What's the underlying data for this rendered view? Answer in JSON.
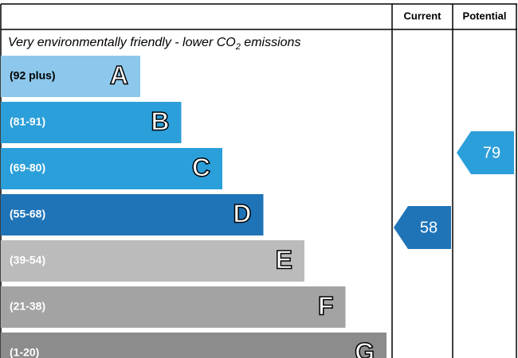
{
  "header": {
    "current": "Current",
    "potential": "Potential"
  },
  "subtitle": {
    "before": "Very environmentally friendly - lower CO",
    "sub": "2",
    "after": " emissions"
  },
  "bands": [
    {
      "range": "(92 plus)",
      "letter": "A",
      "color": "#8dc8ec"
    },
    {
      "range": "(81-91)",
      "letter": "B",
      "color": "#2b9fd9"
    },
    {
      "range": "(69-80)",
      "letter": "C",
      "color": "#2b9fd9"
    },
    {
      "range": "(55-68)",
      "letter": "D",
      "color": "#1f74b8"
    },
    {
      "range": "(39-54)",
      "letter": "E",
      "color": "#bbbbbb"
    },
    {
      "range": "(21-38)",
      "letter": "F",
      "color": "#a3a3a3"
    },
    {
      "range": "(1-20)",
      "letter": "G",
      "color": "#8c8c8c"
    }
  ],
  "current": {
    "value": "58",
    "color": "#1f74b8"
  },
  "potential": {
    "value": "79",
    "color": "#2b9fd9"
  }
}
